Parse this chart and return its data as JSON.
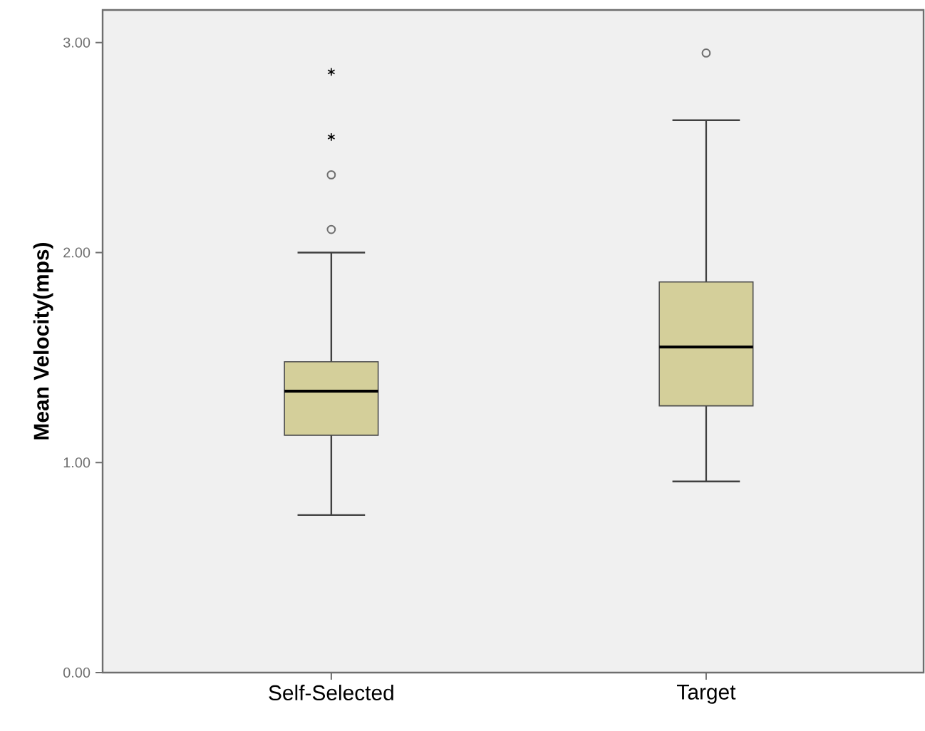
{
  "chart_data": {
    "type": "box",
    "ylabel": "Mean Velocity(mps)",
    "categories": [
      "Self-Selected",
      "Target"
    ],
    "boxes": [
      {
        "low": 0.75,
        "q1": 1.13,
        "median": 1.34,
        "q3": 1.48,
        "high": 2.0,
        "outliers": [
          2.11,
          2.37,
          2.55,
          2.86
        ]
      },
      {
        "low": 0.91,
        "q1": 1.27,
        "median": 1.55,
        "q3": 1.86,
        "high": 2.63,
        "outliers": [
          2.95
        ]
      }
    ],
    "color": "#d4cf9a",
    "ylim": [
      0,
      3.155
    ],
    "yticks": [
      {
        "value": 0,
        "label": "0.00"
      },
      {
        "value": 1,
        "label": "1.00"
      },
      {
        "value": 2,
        "label": "2.00"
      },
      {
        "value": 3,
        "label": "3.00"
      }
    ],
    "grid": false
  }
}
